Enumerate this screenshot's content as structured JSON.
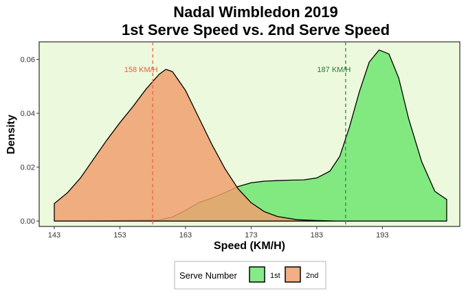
{
  "chart_data": {
    "type": "area",
    "title": "Nadal Wimbledon 2019",
    "subtitle": "1st Serve Speed vs. 2nd Serve Speed",
    "xlabel": "Speed (KM/H)",
    "ylabel": "Density",
    "xlim": [
      140.7,
      204.8
    ],
    "ylim": [
      -0.002,
      0.0665
    ],
    "xticks": [
      143,
      153,
      163,
      173,
      183,
      193
    ],
    "yticks": [
      0.0,
      0.02,
      0.04,
      0.06
    ],
    "ytick_labels": [
      "0.00",
      "0.02",
      "0.04",
      "0.06"
    ],
    "grid": false,
    "panel_background": "#edf9dd",
    "legend_position": "bottom",
    "legend_title": "Serve Number",
    "series": [
      {
        "name": "1st",
        "color": "#5de361",
        "fill_opacity": 0.75,
        "x": [
          143,
          148,
          153,
          156,
          159,
          161,
          163,
          165,
          167,
          169,
          171,
          173,
          175,
          177,
          179,
          181,
          183,
          185,
          186.5,
          188,
          189.5,
          191,
          192.5,
          194,
          195.5,
          197,
          199,
          201,
          202.8
        ],
        "y": [
          0.0,
          0.0,
          0.0002,
          0.0003,
          0.0004,
          0.0015,
          0.004,
          0.0068,
          0.0085,
          0.0105,
          0.0128,
          0.0142,
          0.0148,
          0.015,
          0.0152,
          0.0153,
          0.016,
          0.0185,
          0.024,
          0.035,
          0.048,
          0.059,
          0.0635,
          0.062,
          0.053,
          0.038,
          0.022,
          0.011,
          0.008
        ]
      },
      {
        "name": "2nd",
        "color": "#f0a06e",
        "fill_opacity": 0.85,
        "x": [
          143,
          145,
          147,
          149,
          151,
          153,
          155,
          157,
          159,
          160,
          161,
          163,
          165,
          167,
          169,
          171,
          173,
          175,
          177,
          180,
          183,
          186,
          189,
          192,
          195,
          198,
          201,
          202.8
        ],
        "y": [
          0.0065,
          0.0105,
          0.016,
          0.023,
          0.03,
          0.0365,
          0.0425,
          0.049,
          0.0545,
          0.0563,
          0.0555,
          0.0485,
          0.0385,
          0.0285,
          0.0195,
          0.012,
          0.0068,
          0.0035,
          0.0017,
          0.0005,
          0.0002,
          0.0,
          0.0,
          0.0,
          0.0,
          0.0,
          0.0,
          0.0
        ]
      }
    ],
    "annotations": [
      {
        "text": "158 KM/H",
        "x": 158.0,
        "y": 0.0563,
        "color": "#e85f3c",
        "line_color": "#e8673f"
      },
      {
        "text": "187 KM/H",
        "x": 187.4,
        "y": 0.0563,
        "color": "#1f7a35",
        "line_color": "#2b8a3e"
      }
    ]
  }
}
